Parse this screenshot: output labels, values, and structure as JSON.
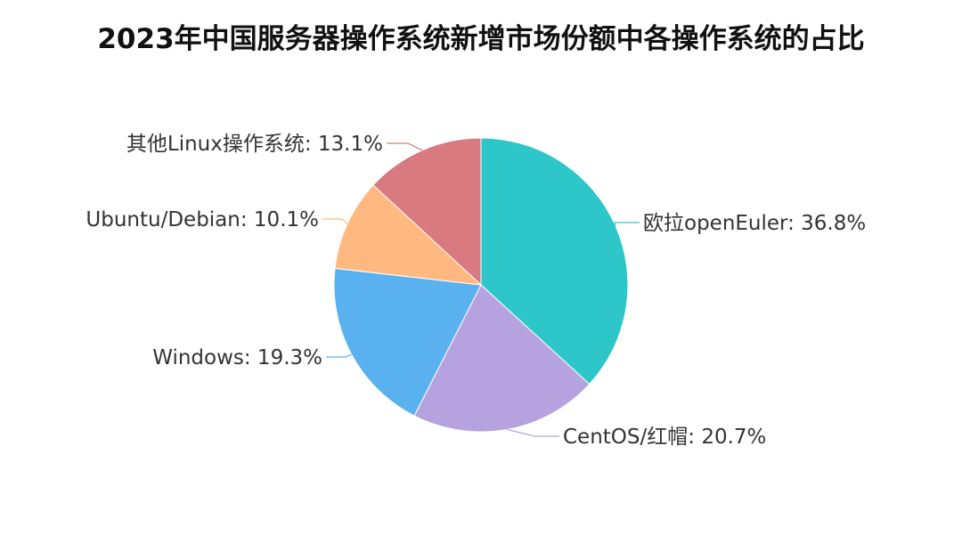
{
  "chart_data": {
    "type": "pie",
    "title": "2023年中国服务器操作系统新增市场份额中各操作系统的占比",
    "slices": [
      {
        "label": "欧拉openEuler",
        "value": 36.8,
        "display": "欧拉openEuler: 36.8%",
        "color": "#2ec7c9"
      },
      {
        "label": "CentOS/红帽",
        "value": 20.7,
        "display": "CentOS/红帽: 20.7%",
        "color": "#b6a2de"
      },
      {
        "label": "Windows",
        "value": 19.3,
        "display": "Windows: 19.3%",
        "color": "#5ab1ef"
      },
      {
        "label": "Ubuntu/Debian",
        "value": 10.1,
        "display": "Ubuntu/Debian: 10.1%",
        "color": "#ffb980"
      },
      {
        "label": "其他Linux操作系统",
        "value": 13.1,
        "display": "其他Linux操作系统: 13.1%",
        "color": "#d87a80"
      }
    ],
    "start_angle": "12 o'clock",
    "direction": "clockwise",
    "legend": "none"
  }
}
